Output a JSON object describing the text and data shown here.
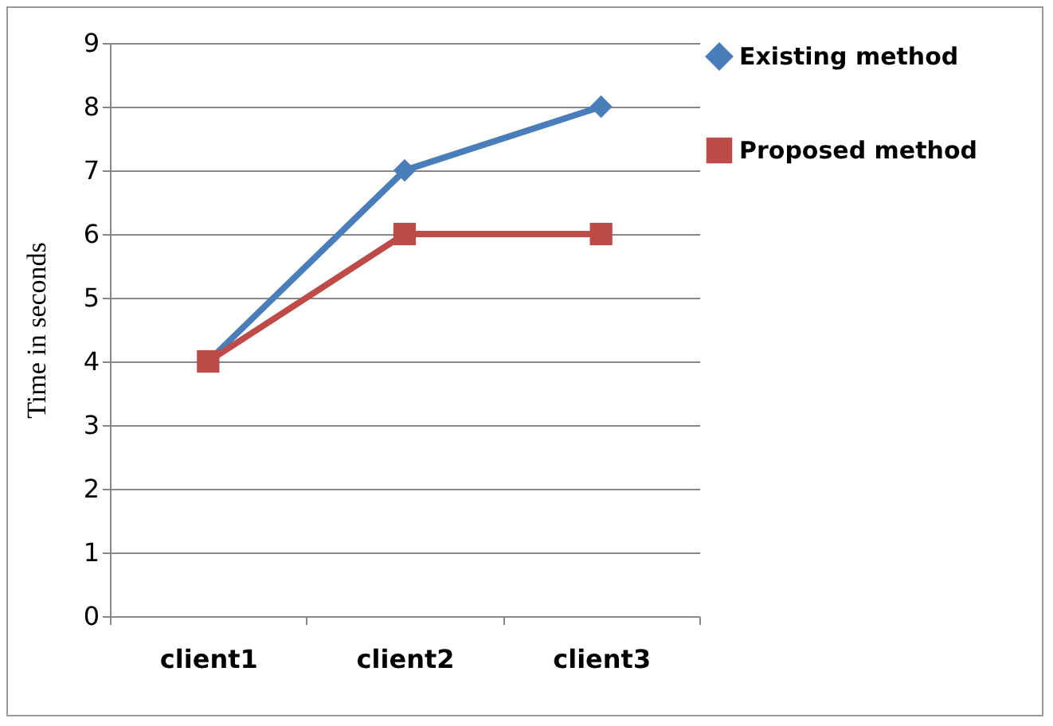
{
  "chart_data": {
    "type": "line",
    "ylabel": "Time in seconds",
    "categories": [
      "client1",
      "client2",
      "client3"
    ],
    "series": [
      {
        "name": "Existing method",
        "color": "#4a7ebb",
        "marker": "diamond",
        "values": [
          4,
          7,
          8
        ]
      },
      {
        "name": "Proposed method",
        "color": "#be4b48",
        "marker": "square",
        "values": [
          4,
          6,
          6
        ]
      }
    ],
    "ylim": [
      0,
      9
    ],
    "yticks": [
      0,
      1,
      2,
      3,
      4,
      5,
      6,
      7,
      8,
      9
    ],
    "grid": "y",
    "legend": "right"
  }
}
